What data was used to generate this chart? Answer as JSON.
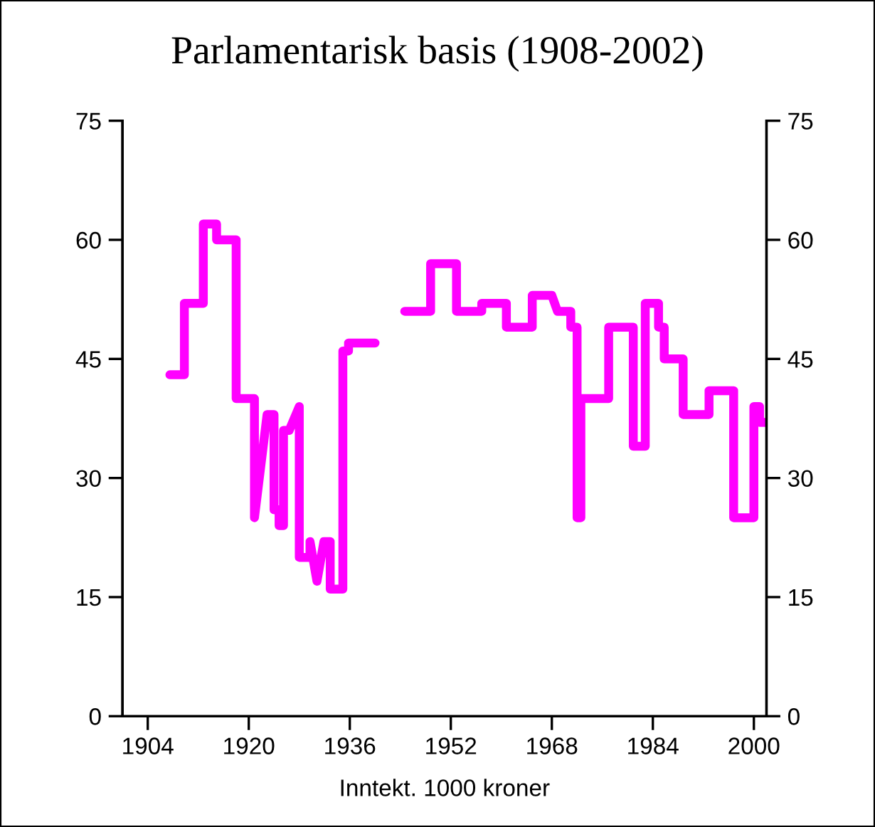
{
  "chart_data": {
    "type": "line",
    "title": "Parlamentarisk basis (1908-2002)",
    "xlabel": "Inntekt. 1000 kroner",
    "series": [
      {
        "color": "#ff00ff",
        "x": [
          1907.5,
          1909.8,
          1909.8,
          1912.8,
          1912.8,
          1914.9,
          1914.9,
          1918.0,
          1918.0,
          1920.9,
          1920.9,
          1922.9,
          1924.0,
          1924.0,
          1924.8,
          1924.8,
          1925.5,
          1925.5,
          1926.4,
          1928.0,
          1928.0,
          1929.7,
          1929.7,
          1930.8,
          1931.9,
          1932.9,
          1932.9,
          1934.9,
          1934.9,
          1935.8,
          1935.8,
          1940.0,
          1942.0,
          1944.7,
          1948.8,
          1948.8,
          1952.9,
          1952.9,
          1956.9,
          1956.9,
          1960.8,
          1960.8,
          1964.9,
          1964.9,
          1968.0,
          1968.9,
          1971.0,
          1971.0,
          1972.0,
          1972.0,
          1972.6,
          1972.6,
          1977.0,
          1977.0,
          1980.9,
          1980.9,
          1982.8,
          1982.8,
          1984.9,
          1984.9,
          1985.8,
          1985.8,
          1988.8,
          1988.8,
          1992.9,
          1992.9,
          1996.8,
          1996.8,
          2000.0,
          2000.0,
          2000.9,
          2000.9,
          2001.8
        ],
        "values": [
          43,
          43,
          52,
          52,
          62,
          62,
          60,
          60,
          40,
          40,
          25,
          38,
          38,
          26,
          26,
          24,
          24,
          36,
          36,
          39,
          20,
          20,
          22,
          17,
          22,
          22,
          16,
          16,
          46,
          46,
          47,
          47,
          null,
          51,
          51,
          57,
          57,
          51,
          51,
          52,
          52,
          49,
          49,
          53,
          53,
          51,
          51,
          49,
          49,
          25,
          25,
          40,
          40,
          49,
          49,
          34,
          34,
          52,
          52,
          49,
          49,
          45,
          45,
          38,
          38,
          41,
          41,
          25,
          25,
          39,
          39,
          37,
          37
        ]
      }
    ],
    "xlim": [
      1900,
      2002
    ],
    "xticks": [
      1904,
      1920,
      1936,
      1952,
      1968,
      1984,
      2000
    ],
    "ylim": [
      0,
      75
    ],
    "yticks": [
      0,
      15,
      30,
      45,
      60,
      75
    ],
    "y2lim": [
      0,
      75
    ],
    "y2ticks": [
      0,
      15,
      30,
      45,
      60,
      75
    ],
    "grid": false,
    "legend": false,
    "marker": "none",
    "line_style": "solid"
  }
}
